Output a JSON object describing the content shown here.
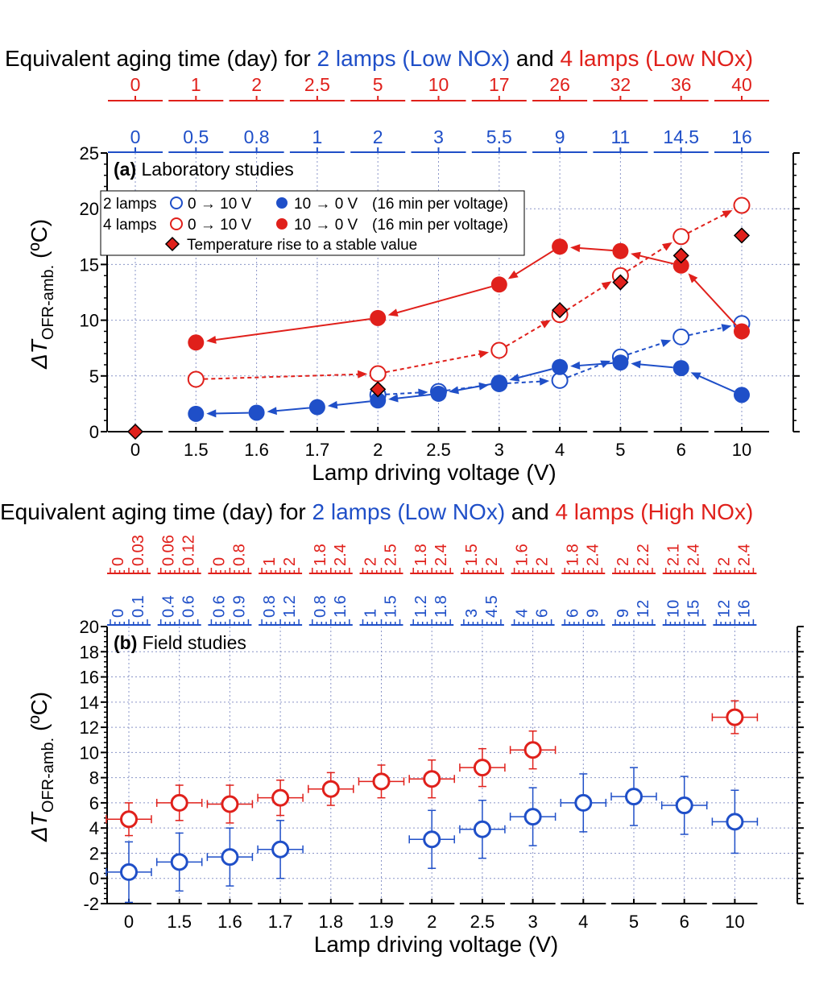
{
  "colors": {
    "blue": "#1f4fc8",
    "red": "#e0201b",
    "black": "#000000",
    "grid": "#8a95c8"
  },
  "chart_data": [
    {
      "type": "line",
      "panel_label": "(a)",
      "title_text": "Laboratory studies",
      "top_title": {
        "prefix": "Equivalent aging time (day) for ",
        "blue": "2 lamps (Low NOx)",
        "mid": " and ",
        "red": "4 lamps (Low NOx)"
      },
      "xlabel": "Lamp driving voltage (V)",
      "ylabel": {
        "main": "ΔT",
        "sub": "OFR-amb.",
        "unit": " (ºC)"
      },
      "categories": [
        "0",
        "1.5",
        "1.6",
        "1.7",
        "2",
        "2.5",
        "3",
        "4",
        "5",
        "6",
        "10"
      ],
      "ylim": [
        0,
        25
      ],
      "yticks": [
        0,
        5,
        10,
        15,
        20,
        25
      ],
      "top_axis_red": [
        "0",
        "1",
        "2",
        "2.5",
        "5",
        "10",
        "17",
        "26",
        "32",
        "36",
        "40"
      ],
      "top_axis_blue": [
        "0",
        "0.5",
        "0.8",
        "1",
        "2",
        "3",
        "5.5",
        "9",
        "11",
        "14.5",
        "16"
      ],
      "legend": {
        "row1": {
          "group": "2 lamps",
          "up": "0 → 10 V",
          "down": "10 → 0 V",
          "note": "(16 min per voltage)"
        },
        "row2": {
          "group": "4 lamps",
          "up": "0 → 10 V",
          "down": "10 → 0 V",
          "note": "(16 min per voltage)"
        },
        "row3": {
          "label": "Temperature rise to a stable value"
        }
      },
      "series": [
        {
          "name": "2 lamps 0→10 V",
          "color": "blue",
          "marker": "open",
          "style": "dashed",
          "x": [
            "2",
            "2.5",
            "3",
            "4",
            "5",
            "6",
            "10"
          ],
          "y": [
            3.3,
            3.6,
            4.3,
            4.6,
            6.7,
            8.5,
            9.7
          ]
        },
        {
          "name": "2 lamps 10→0 V",
          "color": "blue",
          "marker": "filled",
          "style": "solid",
          "x": [
            "10",
            "6",
            "5",
            "4",
            "3",
            "2.5",
            "2",
            "1.7",
            "1.6",
            "1.5"
          ],
          "y": [
            3.3,
            5.7,
            6.2,
            5.8,
            4.4,
            3.4,
            2.8,
            2.2,
            1.7,
            1.6
          ]
        },
        {
          "name": "4 lamps 0→10 V",
          "color": "red",
          "marker": "open",
          "style": "dashed",
          "x": [
            "1.5",
            "2",
            "3",
            "4",
            "5",
            "6",
            "10"
          ],
          "y": [
            4.7,
            5.2,
            7.3,
            10.5,
            14.0,
            17.5,
            20.3
          ]
        },
        {
          "name": "4 lamps 10→0 V",
          "color": "red",
          "marker": "filled",
          "style": "solid",
          "x": [
            "10",
            "6",
            "5",
            "4",
            "3",
            "2",
            "1.5"
          ],
          "y": [
            9.0,
            14.9,
            16.2,
            16.6,
            13.2,
            10.2,
            8.0
          ]
        },
        {
          "name": "Temperature rise to a stable value",
          "color": "red",
          "marker": "diamond",
          "style": "none",
          "x": [
            "0",
            "2",
            "4",
            "5",
            "6",
            "10"
          ],
          "y": [
            0,
            3.8,
            10.9,
            13.4,
            15.8,
            17.6
          ]
        }
      ]
    },
    {
      "type": "scatter",
      "panel_label": "(b)",
      "title_text": "Field studies",
      "top_title": {
        "prefix": "Equivalent aging time (day) for ",
        "blue": "2 lamps (Low NOx)",
        "mid": " and ",
        "red": "4 lamps (High NOx)"
      },
      "xlabel": "Lamp driving voltage (V)",
      "ylabel": {
        "main": "ΔT",
        "sub": "OFR-amb.",
        "unit": " (ºC)"
      },
      "categories": [
        "0",
        "1.5",
        "1.6",
        "1.7",
        "1.8",
        "1.9",
        "2",
        "2.5",
        "3",
        "4",
        "5",
        "6",
        "10"
      ],
      "ylim": [
        -2,
        20
      ],
      "yticks": [
        -2,
        0,
        2,
        4,
        6,
        8,
        10,
        12,
        14,
        16,
        18,
        20
      ],
      "top_axis_red": [
        [
          "0",
          "0.03"
        ],
        [
          "0.06",
          "0.12"
        ],
        [
          "0",
          "0.8"
        ],
        [
          "1",
          "2"
        ],
        [
          "1.8",
          "2.4"
        ],
        [
          "2",
          "2.5"
        ],
        [
          "1.8",
          "2.4"
        ],
        [
          "1.5",
          "2"
        ],
        [
          "1.6",
          "2"
        ],
        [
          "1.8",
          "2.4"
        ],
        [
          "2",
          "2.2"
        ],
        [
          "2.1",
          "2.4"
        ],
        [
          "2",
          "2.4"
        ]
      ],
      "top_axis_blue": [
        [
          "0",
          "0.1"
        ],
        [
          "0.4",
          "0.6"
        ],
        [
          "0.6",
          "0.9"
        ],
        [
          "0.8",
          "1.2"
        ],
        [
          "0.8",
          "1.6"
        ],
        [
          "1",
          "1.5"
        ],
        [
          "1.2",
          "1.8"
        ],
        [
          "3",
          "4.5"
        ],
        [
          "4",
          "6"
        ],
        [
          "6",
          "9"
        ],
        [
          "9",
          "12"
        ],
        [
          "10",
          "15"
        ],
        [
          "12",
          "16"
        ]
      ],
      "series": [
        {
          "name": "4 lamps",
          "color": "red",
          "x": [
            "0",
            "1.5",
            "1.6",
            "1.7",
            "1.8",
            "1.9",
            "2",
            "2.5",
            "3",
            "10"
          ],
          "y": [
            4.7,
            6.0,
            5.9,
            6.4,
            7.1,
            7.7,
            7.9,
            8.8,
            10.2,
            12.8
          ],
          "yerr": [
            1.3,
            1.4,
            1.5,
            1.4,
            1.3,
            1.3,
            1.5,
            1.5,
            1.5,
            1.3
          ]
        },
        {
          "name": "2 lamps",
          "color": "blue",
          "x": [
            "0",
            "1.5",
            "1.6",
            "1.7",
            "2",
            "2.5",
            "3",
            "4",
            "5",
            "6",
            "10"
          ],
          "y": [
            0.5,
            1.3,
            1.7,
            2.3,
            3.1,
            3.9,
            4.9,
            6.0,
            6.5,
            5.8,
            4.5
          ],
          "yerr": [
            2.4,
            2.3,
            2.3,
            2.3,
            2.3,
            2.3,
            2.3,
            2.3,
            2.3,
            2.3,
            2.5
          ]
        }
      ]
    }
  ]
}
